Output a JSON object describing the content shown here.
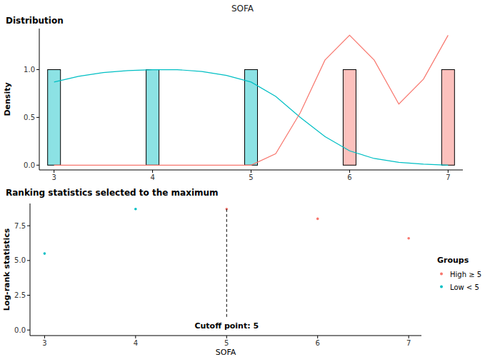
{
  "title": "SOFA",
  "chart_data": [
    {
      "type": "bar",
      "title": "Distribution",
      "y_label": "Density",
      "xlim": [
        2.85,
        7.15
      ],
      "xticks": [
        3,
        4,
        5,
        6,
        7
      ],
      "ylim": [
        -0.05,
        1.43
      ],
      "yticks": [
        {
          "value": 0,
          "label": "0.0"
        },
        {
          "value": 0.5,
          "label": "0.5"
        },
        {
          "value": 1,
          "label": "1.0"
        }
      ],
      "grid": false,
      "series": [
        {
          "type": "bar",
          "color": "#00BFC4",
          "x": [
            3,
            4,
            5
          ],
          "values": [
            1,
            1,
            1
          ]
        },
        {
          "type": "bar",
          "color": "#F8766D",
          "x": [
            6,
            7
          ],
          "values": [
            1,
            1
          ]
        },
        {
          "type": "line",
          "color": "#00BFC4",
          "x": [
            3,
            3.25,
            3.5,
            3.75,
            4,
            4.25,
            4.5,
            4.75,
            5,
            5.25,
            5.5,
            5.75,
            6,
            6.25,
            6.5,
            6.75,
            7
          ],
          "values": [
            0.87,
            0.93,
            0.97,
            0.99,
            1.0,
            1.0,
            0.98,
            0.94,
            0.87,
            0.72,
            0.5,
            0.3,
            0.15,
            0.07,
            0.03,
            0.01,
            0.0
          ]
        },
        {
          "type": "line",
          "color": "#F8766D",
          "x": [
            3,
            3.25,
            3.5,
            3.75,
            4,
            4.25,
            4.5,
            4.75,
            5,
            5.25,
            5.5,
            5.75,
            6,
            6.25,
            6.5,
            6.75,
            7
          ],
          "values": [
            0,
            0,
            0,
            0,
            0,
            0,
            0,
            0,
            0,
            0.12,
            0.55,
            1.1,
            1.36,
            1.1,
            0.64,
            0.9,
            1.36
          ]
        }
      ]
    },
    {
      "type": "scatter",
      "title": "Ranking statistics selected to the maximum",
      "x_label": "SOFA",
      "y_label": "Log-rank statistics",
      "xlim": [
        2.84,
        7.14
      ],
      "xticks": [
        3,
        4,
        5,
        6,
        7
      ],
      "ylim": [
        -0.4,
        9.1
      ],
      "yticks": [
        {
          "value": 0,
          "label": "0.0"
        },
        {
          "value": 2.5,
          "label": "2.5"
        },
        {
          "value": 5,
          "label": "5.0"
        },
        {
          "value": 7.5,
          "label": "7.5"
        }
      ],
      "grid": false,
      "legend": "right",
      "legend_title": "Groups",
      "cutoff": 5,
      "annotation": "Cutoff point: 5",
      "series": [
        {
          "name": "High ≥ 5",
          "color": "#F8766D",
          "x": [
            5,
            6,
            7
          ],
          "values": [
            8.7,
            8.0,
            6.6
          ]
        },
        {
          "name": "Low < 5",
          "color": "#00BFC4",
          "x": [
            3,
            4
          ],
          "values": [
            5.5,
            8.7
          ]
        }
      ]
    }
  ]
}
